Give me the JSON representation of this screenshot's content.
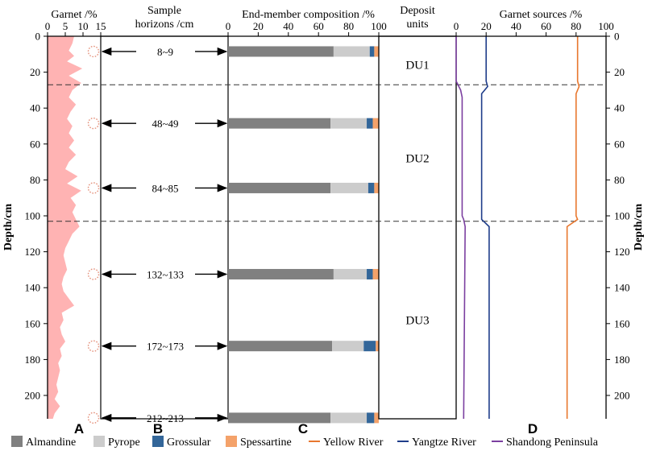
{
  "chart_data": [
    {
      "panel": "A",
      "type": "area",
      "title": "Garnet /%",
      "xlim": [
        0,
        15
      ],
      "xticks": [
        0,
        5,
        10,
        15
      ],
      "ylim": [
        0,
        213
      ],
      "fill_color": "#ffb3b3",
      "y": [
        0,
        4,
        8,
        11,
        14,
        18,
        22,
        26,
        30,
        34,
        38,
        42,
        46,
        50,
        54,
        58,
        62,
        66,
        70,
        74,
        78,
        82,
        86,
        90,
        94,
        98,
        102,
        106,
        110,
        114,
        118,
        122,
        126,
        130,
        134,
        138,
        142,
        146,
        150,
        154,
        158,
        162,
        166,
        170,
        174,
        178,
        182,
        186,
        190,
        194,
        198,
        202,
        206,
        210,
        213
      ],
      "values": [
        7.5,
        7.0,
        6.0,
        7.5,
        5.5,
        9.8,
        6.0,
        9.5,
        7.0,
        6.0,
        8.0,
        6.5,
        5.5,
        7.0,
        6.0,
        7.5,
        6.0,
        8.0,
        6.0,
        5.0,
        8.5,
        5.5,
        9.5,
        6.5,
        8.0,
        7.0,
        8.0,
        9.0,
        7.0,
        6.0,
        5.0,
        4.5,
        5.0,
        5.5,
        4.5,
        4.0,
        4.5,
        6.0,
        7.5,
        4.0,
        4.5,
        3.5,
        4.0,
        5.0,
        3.5,
        4.0,
        3.0,
        3.5,
        3.0,
        2.5,
        3.0,
        2.0,
        3.5,
        2.0,
        1.5
      ]
    },
    {
      "panel": "B",
      "type": "table",
      "title": [
        "Sample",
        "horizons /cm"
      ],
      "samples": [
        {
          "label": "8~9",
          "depth": 8.5
        },
        {
          "label": "48~49",
          "depth": 48.5
        },
        {
          "label": "84~85",
          "depth": 84.5
        },
        {
          "label": "132~133",
          "depth": 132.5
        },
        {
          "label": "172~173",
          "depth": 172.5
        },
        {
          "label": "212~213",
          "depth": 212.5
        }
      ]
    },
    {
      "panel": "C",
      "type": "bar",
      "orientation": "horizontal-stacked",
      "title": "End-member composition /%",
      "xlim": [
        0,
        100
      ],
      "xticks": [
        0,
        20,
        40,
        60,
        80,
        100
      ],
      "depths": [
        8.5,
        48.5,
        84.5,
        132.5,
        172.5,
        212.5
      ],
      "series": [
        {
          "name": "Almandine",
          "color": "#808080",
          "values": [
            70,
            68,
            68,
            70,
            69,
            68
          ]
        },
        {
          "name": "Pyrope",
          "color": "#cccccc",
          "values": [
            24,
            24,
            25,
            22,
            21,
            24
          ]
        },
        {
          "name": "Grossular",
          "color": "#336699",
          "values": [
            3,
            4,
            4,
            4,
            8,
            5
          ]
        },
        {
          "name": "Spessartine",
          "color": "#f4a26a",
          "values": [
            3,
            4,
            3,
            4,
            2,
            3
          ]
        }
      ]
    },
    {
      "panel": "Deposit",
      "type": "table",
      "title": [
        "Deposit",
        "units"
      ],
      "units": [
        {
          "label": "DU1",
          "label_depth": 16
        },
        {
          "label": "DU2",
          "label_depth": 68
        },
        {
          "label": "DU3",
          "label_depth": 158
        }
      ],
      "boundaries": [
        27,
        103
      ]
    },
    {
      "panel": "D",
      "type": "line",
      "title": "Garnet sources /%",
      "xlim": [
        0,
        100
      ],
      "xticks": [
        0,
        20,
        40,
        60,
        80,
        100
      ],
      "ylim": [
        0,
        213
      ],
      "yticks": [
        0,
        20,
        40,
        60,
        80,
        100,
        120,
        140,
        160,
        180,
        200
      ],
      "ylabel": "Depth/cm",
      "series": [
        {
          "name": "Yellow River",
          "color": "#e8772e",
          "x": [
            81,
            81,
            82,
            80,
            80,
            81,
            74,
            74
          ],
          "y": [
            0,
            25,
            28,
            32,
            100,
            102,
            106,
            213
          ]
        },
        {
          "name": "Yangtze River",
          "color": "#1f3d8a",
          "x": [
            20,
            20,
            21,
            17,
            17,
            17,
            22,
            22
          ],
          "y": [
            0,
            25,
            28,
            32,
            100,
            102,
            106,
            213
          ]
        },
        {
          "name": "Shandong Peninsula",
          "color": "#7b3fa0",
          "x": [
            0,
            0,
            3,
            4,
            4,
            5,
            6,
            5
          ],
          "y": [
            0,
            25,
            30,
            34,
            100,
            102,
            106,
            213
          ]
        }
      ]
    }
  ],
  "legend": [
    {
      "label": "Almandine",
      "kind": "box",
      "color": "#808080"
    },
    {
      "label": "Pyrope",
      "kind": "box",
      "color": "#cccccc"
    },
    {
      "label": "Grossular",
      "kind": "box",
      "color": "#336699"
    },
    {
      "label": "Spessartine",
      "kind": "box",
      "color": "#f4a26a"
    },
    {
      "label": "Yellow River",
      "kind": "line",
      "color": "#e8772e"
    },
    {
      "label": "Yangtze River",
      "kind": "line",
      "color": "#1f3d8a"
    },
    {
      "label": "Shandong Peninsula",
      "kind": "line",
      "color": "#7b3fa0"
    }
  ],
  "panel_letters": [
    "A",
    "B",
    "C",
    "D"
  ]
}
